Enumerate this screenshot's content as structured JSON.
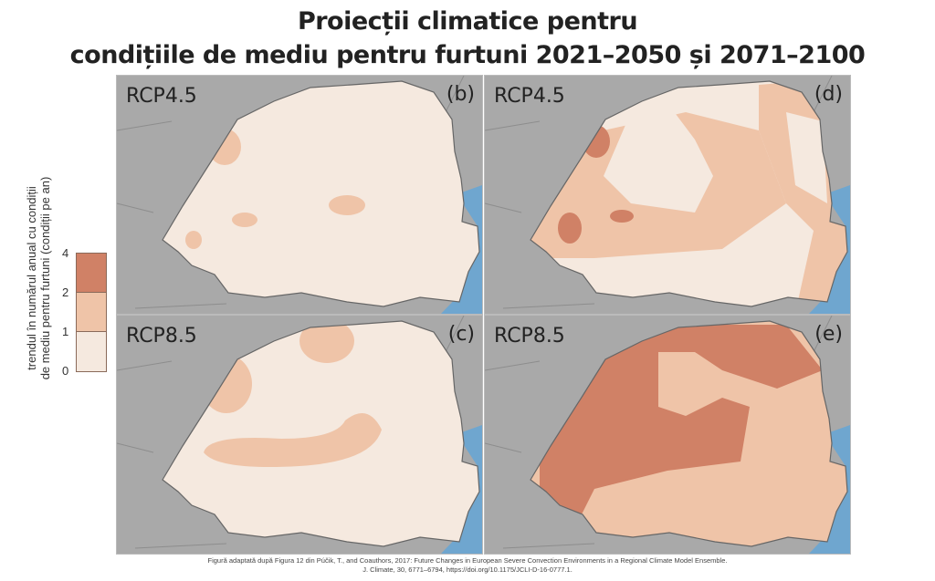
{
  "title": {
    "line1": "Proiecții climatice pentru",
    "line2": "condițiile de mediu pentru furtuni 2021–2050 și 2071–2100"
  },
  "legend": {
    "title_line1": "trendul în numărul anual cu condiții",
    "title_line2": "de mediu pentru furtuni (condiții pe an)",
    "ticks": [
      "4",
      "2",
      "1",
      "0"
    ],
    "colors": {
      "high": "#d08166",
      "mid": "#efc4a8",
      "low": "#f5e9df"
    }
  },
  "panels": [
    {
      "scenario": "RCP4.5",
      "letter": "(b)"
    },
    {
      "scenario": "RCP4.5",
      "letter": "(d)"
    },
    {
      "scenario": "RCP8.5",
      "letter": "(c)"
    },
    {
      "scenario": "RCP8.5",
      "letter": "(e)"
    }
  ],
  "caption": {
    "line1": "Figură adaptată după Figura 12 din Púčik, T., and Coauthors, 2017: Future Changes in European Severe Convection Environments in a Regional Climate Model Ensemble.",
    "line2": "J. Climate, 30, 6771–6794, https://doi.org/10.1175/JCLI-D-16-0777.1."
  }
}
